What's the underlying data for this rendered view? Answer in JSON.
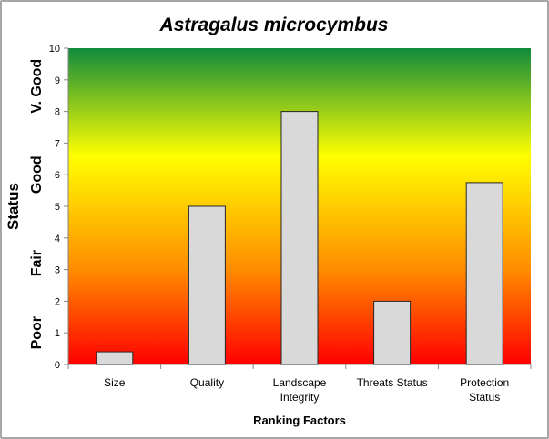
{
  "chart_data": {
    "type": "bar",
    "title": "Astragalus microcymbus",
    "xlabel": "Ranking Factors",
    "ylabel": "Status",
    "categories": [
      "Size",
      "Quality",
      "Landscape Integrity",
      "Threats Status",
      "Protection Status"
    ],
    "category_lines": [
      [
        "Size"
      ],
      [
        "Quality"
      ],
      [
        "Landscape",
        "Integrity"
      ],
      [
        "Threats Status"
      ],
      [
        "Protection",
        "Status"
      ]
    ],
    "values": [
      0.4,
      5,
      8,
      2,
      5.75
    ],
    "ylim": [
      0,
      10
    ],
    "yticks": [
      0,
      1,
      2,
      3,
      4,
      5,
      6,
      7,
      8,
      9,
      10
    ],
    "status_labels": [
      {
        "label": "Poor",
        "center": 1
      },
      {
        "label": "Fair",
        "center": 3.2
      },
      {
        "label": "Good",
        "center": 6
      },
      {
        "label": "V. Good",
        "center": 8.8
      }
    ],
    "grid": false,
    "legend": "none",
    "bar_color": "#d9d9d9",
    "background_gradient": [
      {
        "value": 0,
        "color": "#ff0000"
      },
      {
        "value": 3,
        "color": "#ff8c00"
      },
      {
        "value": 6.6,
        "color": "#ffff00"
      },
      {
        "value": 10,
        "color": "#118a3c"
      }
    ]
  }
}
